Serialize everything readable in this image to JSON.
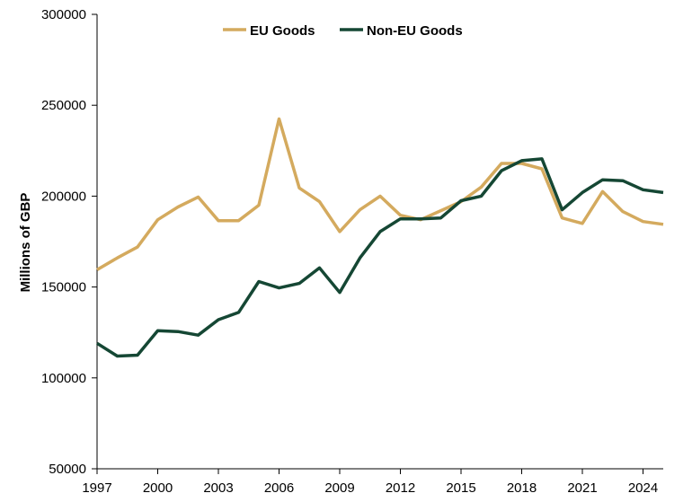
{
  "chart_data": {
    "type": "line",
    "title": "",
    "xlabel": "",
    "ylabel": "Millions of GBP",
    "x": [
      1997,
      1998,
      1999,
      2000,
      2001,
      2002,
      2003,
      2004,
      2005,
      2006,
      2007,
      2008,
      2009,
      2010,
      2011,
      2012,
      2013,
      2014,
      2015,
      2016,
      2017,
      2018,
      2019,
      2020,
      2021,
      2022,
      2023,
      2024,
      2025
    ],
    "xlim": [
      1997,
      2025
    ],
    "ylim": [
      50000,
      300000
    ],
    "x_ticks": [
      1997,
      2000,
      2003,
      2006,
      2009,
      2012,
      2015,
      2018,
      2021,
      2024
    ],
    "y_ticks": [
      50000,
      100000,
      150000,
      200000,
      250000,
      300000
    ],
    "grid": false,
    "legend": "top-center",
    "series": [
      {
        "name": "EU Goods",
        "color": "#d4aa5e",
        "values": [
          159500,
          166000,
          172000,
          187000,
          194000,
          199500,
          186500,
          186500,
          195000,
          242500,
          204500,
          197000,
          180500,
          192500,
          200000,
          189500,
          187000,
          192000,
          197000,
          205000,
          218000,
          218000,
          215000,
          188000,
          185000,
          202500,
          191500,
          186000,
          184500
        ]
      },
      {
        "name": "Non-EU Goods",
        "color": "#154734",
        "values": [
          119000,
          112000,
          112500,
          126000,
          125500,
          123500,
          132000,
          136000,
          153000,
          149500,
          152000,
          160500,
          147000,
          166000,
          180500,
          187500,
          187500,
          188000,
          197500,
          200000,
          214000,
          219500,
          220500,
          192500,
          202000,
          209000,
          208500,
          203500,
          202000
        ]
      }
    ]
  }
}
